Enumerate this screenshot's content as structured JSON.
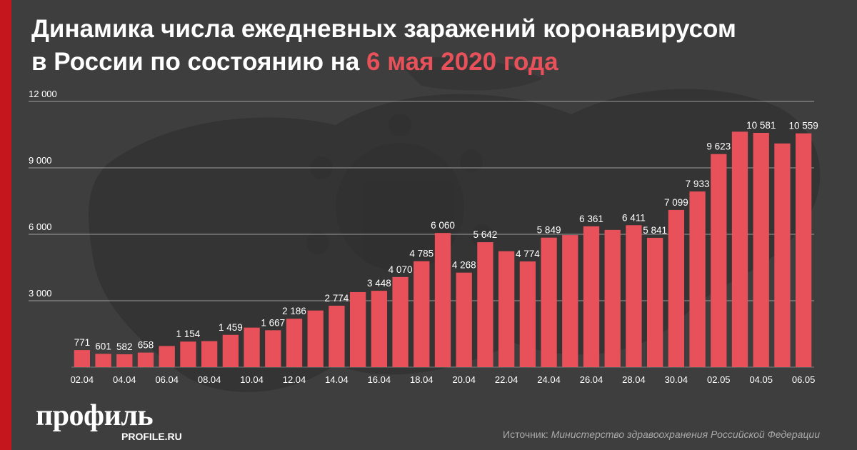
{
  "title": {
    "line1": "Динамика числа ежедневных заражений коронавирусом",
    "line2_prefix": "в России по состоянию на ",
    "line2_highlight": "6 мая 2020 года"
  },
  "colors": {
    "bar": "#e8505a",
    "highlight": "#e8505a",
    "accent_bar": "#c4161c",
    "grid": "#bdbdbd",
    "background": "#3e3e3e"
  },
  "logo": {
    "main": "профиль",
    "sub": "PROFILE.RU"
  },
  "source": {
    "prefix": "Источник: ",
    "text": "Министерство здравоохранения Российской Федерации"
  },
  "chart_data": {
    "type": "bar",
    "title": "",
    "xlabel": "",
    "ylabel": "",
    "ylim": [
      0,
      12000
    ],
    "yticks": [
      3000,
      6000,
      9000,
      12000
    ],
    "ytick_labels": [
      "3 000",
      "6 000",
      "9 000",
      "12 000"
    ],
    "grid": true,
    "categories": [
      "02.04",
      "03.04",
      "04.04",
      "05.04",
      "06.04",
      "07.04",
      "08.04",
      "09.04",
      "10.04",
      "11.04",
      "12.04",
      "13.04",
      "14.04",
      "15.04",
      "16.04",
      "17.04",
      "18.04",
      "19.04",
      "20.04",
      "21.04",
      "22.04",
      "23.04",
      "24.04",
      "25.04",
      "26.04",
      "27.04",
      "28.04",
      "29.04",
      "30.04",
      "01.05",
      "02.05",
      "03.05",
      "04.05",
      "05.05",
      "06.05"
    ],
    "values": [
      771,
      601,
      582,
      658,
      954,
      1154,
      1175,
      1459,
      1786,
      1667,
      2186,
      2558,
      2774,
      3388,
      3448,
      4070,
      4785,
      6060,
      4268,
      5642,
      5236,
      4774,
      5849,
      5966,
      6361,
      6198,
      6411,
      5841,
      7099,
      7933,
      9623,
      10633,
      10581,
      10102,
      10559
    ],
    "value_labels": [
      "771",
      "601",
      "582",
      "658",
      "",
      "1 154",
      "",
      "1 459",
      "",
      "1 667",
      "2 186",
      "",
      "2 774",
      "",
      "3 448",
      "4 070",
      "4 785",
      "6 060",
      "4 268",
      "5 642",
      "",
      "4 774",
      "5 849",
      "",
      "6 361",
      "",
      "6 411",
      "5 841",
      "7 099",
      "7 933",
      "9 623",
      "",
      "10 581",
      "",
      "10 559"
    ],
    "xtick_labels": [
      "02.04",
      "",
      "04.04",
      "",
      "06.04",
      "",
      "08.04",
      "",
      "10.04",
      "",
      "12.04",
      "",
      "14.04",
      "",
      "16.04",
      "",
      "18.04",
      "",
      "20.04",
      "",
      "22.04",
      "",
      "24.04",
      "",
      "26.04",
      "",
      "28.04",
      "",
      "30.04",
      "",
      "02.05",
      "",
      "04.05",
      "",
      "06.05"
    ]
  }
}
